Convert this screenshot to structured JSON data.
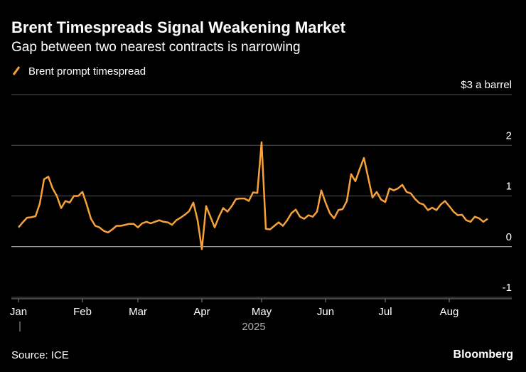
{
  "chart_data": {
    "type": "line",
    "title": "Brent Timespreads Signal Weakening Market",
    "subtitle": "Gap between two nearest contracts is narrowing",
    "xlabel": "2025",
    "source": "Source: ICE",
    "brand": "Bloomberg",
    "categories": [
      "Jan",
      null,
      null,
      null,
      null,
      null,
      null,
      null,
      null,
      null,
      null,
      null,
      null,
      null,
      null,
      "Feb",
      null,
      null,
      null,
      null,
      null,
      null,
      null,
      null,
      null,
      null,
      null,
      null,
      "Mar",
      null,
      null,
      null,
      null,
      null,
      null,
      null,
      null,
      null,
      null,
      null,
      null,
      null,
      null,
      "Apr",
      null,
      null,
      null,
      null,
      null,
      null,
      null,
      null,
      null,
      null,
      null,
      null,
      null,
      "May",
      null,
      null,
      null,
      null,
      null,
      null,
      null,
      null,
      null,
      null,
      null,
      null,
      null,
      null,
      "Jun",
      null,
      null,
      null,
      null,
      null,
      null,
      null,
      null,
      null,
      null,
      null,
      null,
      null,
      "Jul",
      null,
      null,
      null,
      null,
      null,
      null,
      null,
      null,
      null,
      null,
      null,
      null,
      null,
      null,
      "Aug",
      null,
      null,
      null,
      null,
      null,
      null,
      null,
      null,
      null
    ],
    "series": [
      {
        "name": "Brent prompt timespread",
        "color": "#f7a238",
        "values": [
          0.38,
          0.48,
          0.57,
          0.58,
          0.6,
          0.85,
          1.33,
          1.38,
          1.15,
          1.0,
          0.76,
          0.9,
          0.87,
          1.0,
          1.0,
          1.08,
          0.83,
          0.55,
          0.41,
          0.38,
          0.31,
          0.28,
          0.34,
          0.41,
          0.41,
          0.43,
          0.45,
          0.45,
          0.38,
          0.46,
          0.49,
          0.46,
          0.49,
          0.52,
          0.49,
          0.48,
          0.43,
          0.52,
          0.57,
          0.63,
          0.7,
          0.87,
          0.52,
          -0.05,
          0.8,
          0.59,
          0.38,
          0.59,
          0.76,
          0.69,
          0.8,
          0.94,
          0.95,
          0.95,
          0.9,
          1.07,
          1.06,
          2.06,
          0.35,
          0.34,
          0.41,
          0.48,
          0.41,
          0.52,
          0.66,
          0.73,
          0.59,
          0.55,
          0.62,
          0.59,
          0.69,
          1.11,
          0.87,
          0.66,
          0.56,
          0.72,
          0.74,
          0.9,
          1.43,
          1.29,
          1.53,
          1.75,
          1.36,
          0.97,
          1.08,
          0.93,
          0.88,
          1.15,
          1.11,
          1.15,
          1.22,
          1.08,
          1.05,
          0.94,
          0.86,
          0.83,
          0.72,
          0.77,
          0.72,
          0.83,
          0.9,
          0.8,
          0.69,
          0.62,
          0.63,
          0.52,
          0.49,
          0.59,
          0.56,
          0.49,
          0.55
        ]
      }
    ],
    "ylim": [
      -1,
      3
    ],
    "yticks": [
      -1,
      0,
      1,
      2,
      {
        "value": 3,
        "label": "$3 a barrel"
      }
    ],
    "grid": true
  }
}
